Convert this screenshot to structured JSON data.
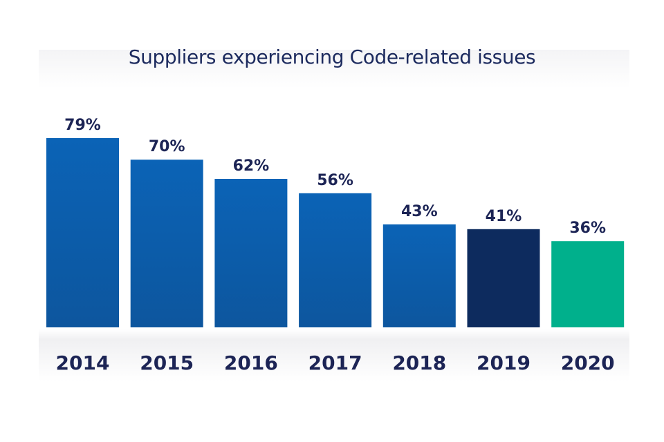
{
  "chart_data": {
    "type": "bar",
    "title": "Suppliers experiencing Code-related issues",
    "xlabel": "",
    "ylabel": "",
    "ylim": [
      0,
      100
    ],
    "grid": false,
    "categories": [
      "2014",
      "2015",
      "2016",
      "2017",
      "2018",
      "2019",
      "2020"
    ],
    "values": [
      79,
      70,
      62,
      56,
      43,
      41,
      36
    ],
    "data_labels": [
      "79%",
      "70%",
      "62%",
      "56%",
      "43%",
      "41%",
      "36%"
    ],
    "colors": [
      "#0e61ad",
      "#0e61ad",
      "#0e61ad",
      "#0e61ad",
      "#0e61ad",
      "#0d2b5e",
      "#00b08c"
    ]
  }
}
